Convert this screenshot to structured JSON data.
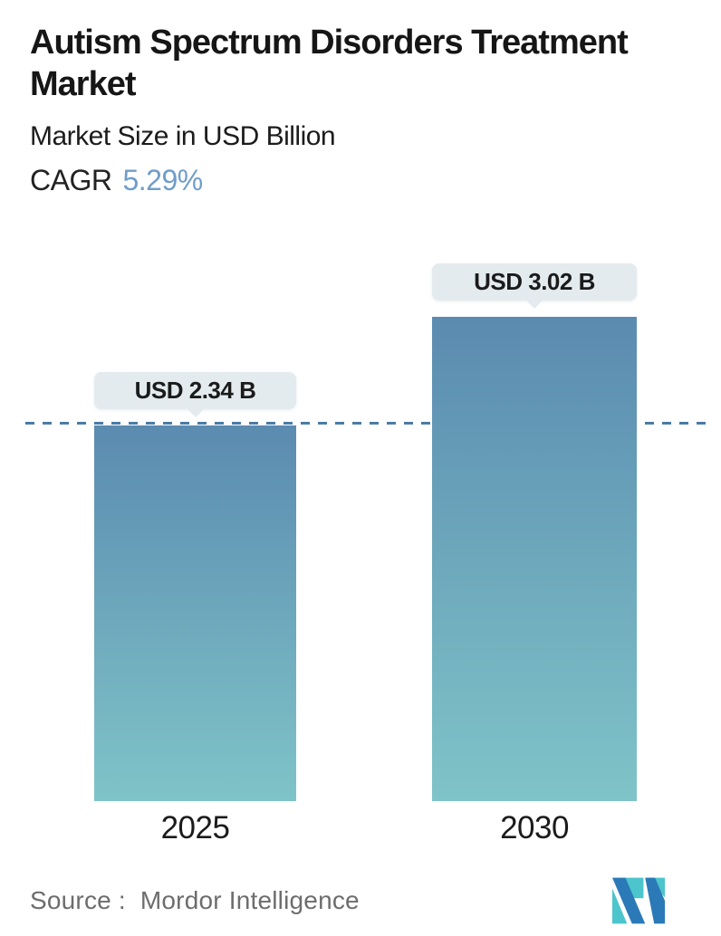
{
  "header": {
    "title": "Autism Spectrum Disorders Treatment Market",
    "subtitle": "Market Size in USD Billion",
    "cagr_label": "CAGR",
    "cagr_value": "5.29%"
  },
  "chart_data": {
    "type": "bar",
    "title": "Autism Spectrum Disorders Treatment Market",
    "subtitle": "Market Size in USD Billion",
    "cagr_percent": 5.29,
    "categories": [
      "2025",
      "2030"
    ],
    "values": [
      2.34,
      3.02
    ],
    "value_labels": [
      "USD 2.34 B",
      "USD 3.02 B"
    ],
    "unit": "USD Billion",
    "ylim": [
      0,
      3.02
    ],
    "grid": false,
    "legend": "none",
    "reference_line": {
      "style": "dashed",
      "at_value": 2.34,
      "color": "#4b7ca6"
    },
    "colors": {
      "bar_gradient_top": "#5b8bb0",
      "bar_gradient_bottom": "#7fc4c8",
      "dashed_line": "#4b7ca6",
      "tooltip_background": "#e3ebee",
      "cagr_accent": "#6f9dc9",
      "text_primary": "#161616",
      "source_text": "#6d6d6d"
    }
  },
  "footer": {
    "source_label": "Source :",
    "source_value": "Mordor Intelligence",
    "logo": {
      "name": "mordor-intelligence-logo",
      "teal": "#4cc5cc",
      "blue": "#2b7ab7"
    }
  }
}
